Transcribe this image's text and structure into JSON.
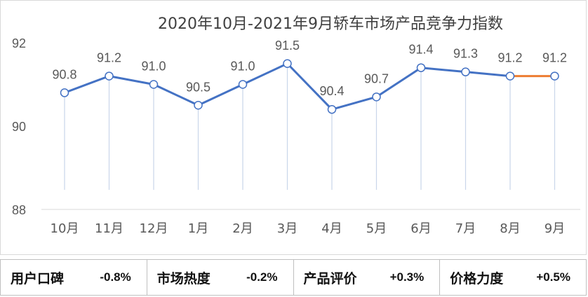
{
  "chart_data": {
    "type": "line",
    "title": "2020年10月-2021年9月轿车市场产品竞争力指数",
    "categories": [
      "10月",
      "11月",
      "12月",
      "1月",
      "2月",
      "3月",
      "4月",
      "5月",
      "6月",
      "7月",
      "8月",
      "9月"
    ],
    "series": [
      {
        "values": [
          90.8,
          91.2,
          91.0,
          90.5,
          91.0,
          91.5,
          90.4,
          90.7,
          91.4,
          91.3,
          91.2,
          91.2
        ]
      }
    ],
    "data_labels": [
      "90.8",
      "91.2",
      "91.0",
      "90.5",
      "91.0",
      "91.5",
      "90.4",
      "90.7",
      "91.4",
      "91.3",
      "91.2",
      "91.2"
    ],
    "yticks": [
      "88",
      "90",
      "92"
    ],
    "ylim": [
      88,
      92
    ],
    "grid": false,
    "colors": {
      "line": "#4472C4",
      "highlight_segment": "#ED7D31",
      "drop_line": "#C9D6EA"
    }
  },
  "metrics": [
    {
      "label": "用户口碑",
      "value": "-0.8%"
    },
    {
      "label": "市场热度",
      "value": "-0.2%"
    },
    {
      "label": "产品评价",
      "value": "+0.3%"
    },
    {
      "label": "价格力度",
      "value": "+0.5%"
    }
  ]
}
